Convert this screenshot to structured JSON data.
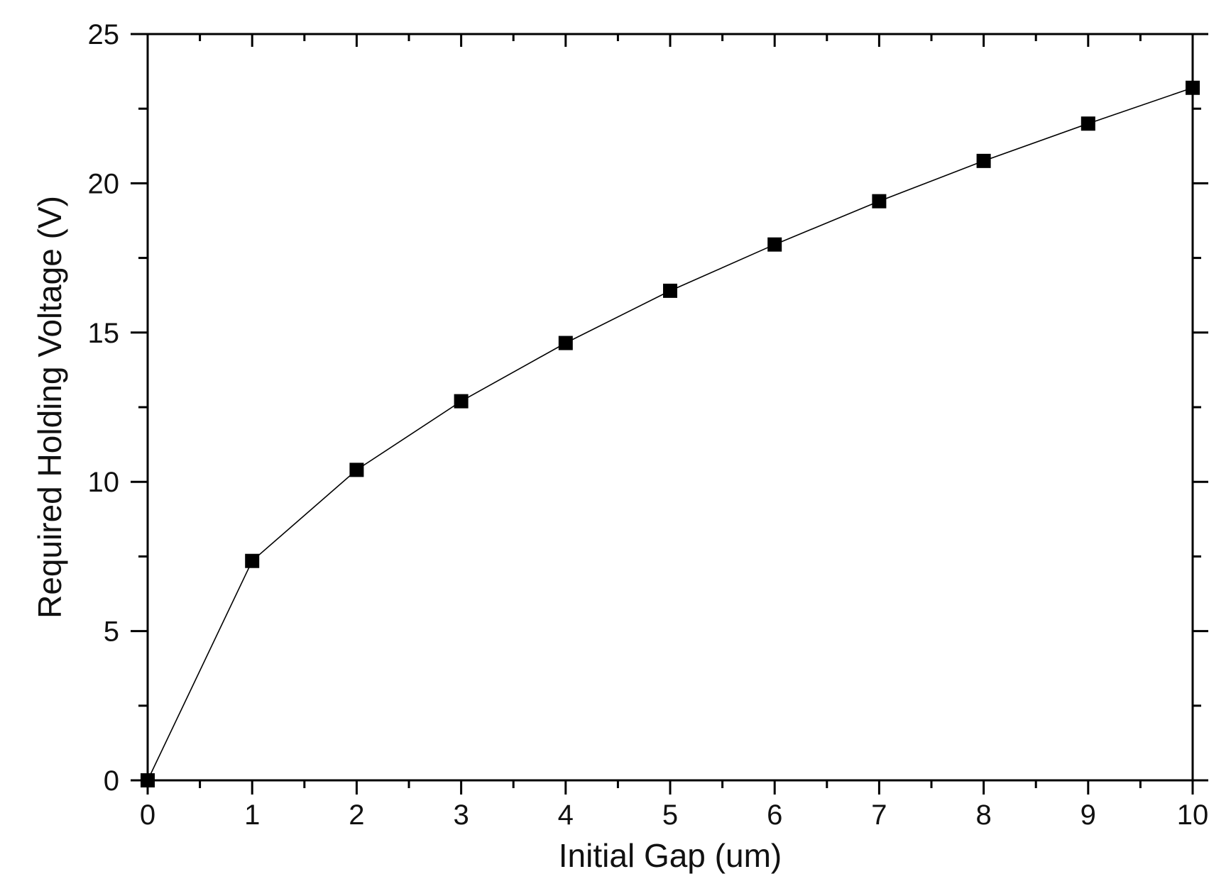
{
  "chart_data": {
    "type": "scatter",
    "title": "",
    "xlabel": "Initial Gap (um)",
    "ylabel": "Required Holding Voltage (V)",
    "xlim": [
      0,
      10
    ],
    "ylim": [
      0,
      25
    ],
    "xticks": [
      0,
      1,
      2,
      3,
      4,
      5,
      6,
      7,
      8,
      9,
      10
    ],
    "yticks": [
      0,
      5,
      10,
      15,
      20,
      25
    ],
    "grid": false,
    "legend": "none",
    "marker": "square",
    "connected": true,
    "series": [
      {
        "x": [
          0,
          1,
          2,
          3,
          4,
          5,
          6,
          7,
          8,
          9,
          10
        ],
        "y": [
          0,
          7.35,
          10.4,
          12.7,
          14.65,
          16.4,
          17.95,
          19.4,
          20.75,
          22.0,
          23.2
        ]
      }
    ],
    "colors": {
      "marker": "#000000",
      "line": "#000000",
      "axis": "#000000"
    }
  }
}
